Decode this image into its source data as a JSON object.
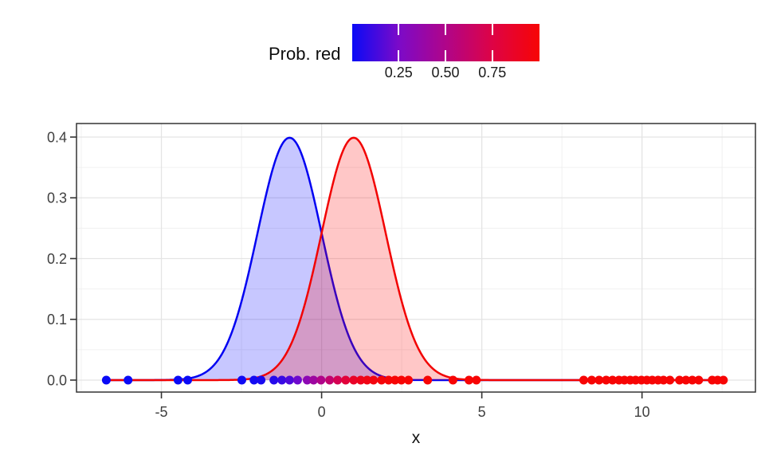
{
  "figure": {
    "background": "#ffffff"
  },
  "legend": {
    "title": "Prob. red",
    "ticks": [
      {
        "value": 0.25,
        "label": "0.25"
      },
      {
        "value": 0.5,
        "label": "0.50"
      },
      {
        "value": 0.75,
        "label": "0.75"
      }
    ],
    "gradient_stops": [
      [
        0.0,
        "#0A0AF6"
      ],
      [
        0.25,
        "#7C0AC8"
      ],
      [
        0.5,
        "#B00589"
      ],
      [
        0.75,
        "#DE0345"
      ],
      [
        1.0,
        "#F70505"
      ]
    ]
  },
  "chart_data": {
    "type": "area",
    "title": "",
    "xlabel": "x",
    "ylabel": "",
    "xlim": [
      -7.65,
      13.54
    ],
    "ylim": [
      -0.0197,
      0.4223
    ],
    "grid": true,
    "legend_position": "top",
    "x_ticks": [
      {
        "value": -5,
        "label": "-5"
      },
      {
        "value": 0,
        "label": "0"
      },
      {
        "value": 5,
        "label": "5"
      },
      {
        "value": 10,
        "label": "10"
      }
    ],
    "x_minor": [
      -7.5,
      -2.5,
      2.5,
      7.5,
      12.5
    ],
    "y_ticks": [
      {
        "value": 0.0,
        "label": "0.0"
      },
      {
        "value": 0.1,
        "label": "0.1"
      },
      {
        "value": 0.2,
        "label": "0.2"
      },
      {
        "value": 0.3,
        "label": "0.3"
      },
      {
        "value": 0.4,
        "label": "0.4"
      }
    ],
    "y_minor": [
      0.05,
      0.15,
      0.25,
      0.35
    ],
    "curves": [
      {
        "name": "blue-density",
        "mean": -1,
        "sd": 1,
        "peak": 0.3989,
        "stroke": "#0202F2",
        "fill_rgb": [
          0,
          0,
          255
        ],
        "fill_alpha": 0.22,
        "domain": [
          -6.72,
          12.54
        ]
      },
      {
        "name": "red-density",
        "mean": 1,
        "sd": 1,
        "peak": 0.3989,
        "stroke": "#F20202",
        "fill_rgb": [
          255,
          0,
          0
        ],
        "fill_alpha": 0.22,
        "domain": [
          -6.72,
          12.54
        ]
      }
    ],
    "points": {
      "y": 0,
      "radius": 5.5,
      "color_by": "prob_red",
      "data": [
        {
          "x": -6.72,
          "p": 0.0
        },
        {
          "x": -6.04,
          "p": 0.0
        },
        {
          "x": -4.48,
          "p": 0.0
        },
        {
          "x": -4.18,
          "p": 0.0
        },
        {
          "x": -2.49,
          "p": 0.01
        },
        {
          "x": -2.11,
          "p": 0.02
        },
        {
          "x": -1.89,
          "p": 0.03
        },
        {
          "x": -1.49,
          "p": 0.06
        },
        {
          "x": -1.24,
          "p": 0.1
        },
        {
          "x": -1.0,
          "p": 0.15
        },
        {
          "x": -0.75,
          "p": 0.22
        },
        {
          "x": -0.45,
          "p": 0.33
        },
        {
          "x": -0.25,
          "p": 0.41
        },
        {
          "x": -0.02,
          "p": 0.5
        },
        {
          "x": 0.25,
          "p": 0.6
        },
        {
          "x": 0.5,
          "p": 0.7
        },
        {
          "x": 0.75,
          "p": 0.79
        },
        {
          "x": 1.0,
          "p": 0.86
        },
        {
          "x": 1.22,
          "p": 0.91
        },
        {
          "x": 1.42,
          "p": 0.94
        },
        {
          "x": 1.62,
          "p": 0.96
        },
        {
          "x": 1.87,
          "p": 0.98
        },
        {
          "x": 2.09,
          "p": 0.99
        },
        {
          "x": 2.29,
          "p": 1.0
        },
        {
          "x": 2.49,
          "p": 1.0
        },
        {
          "x": 2.71,
          "p": 1.0
        },
        {
          "x": 3.31,
          "p": 1.0
        },
        {
          "x": 4.1,
          "p": 1.0
        },
        {
          "x": 4.6,
          "p": 1.0
        },
        {
          "x": 4.83,
          "p": 1.0
        },
        {
          "x": 8.18,
          "p": 1.0
        },
        {
          "x": 8.43,
          "p": 1.0
        },
        {
          "x": 8.66,
          "p": 1.0
        },
        {
          "x": 8.88,
          "p": 1.0
        },
        {
          "x": 9.08,
          "p": 1.0
        },
        {
          "x": 9.28,
          "p": 1.0
        },
        {
          "x": 9.45,
          "p": 1.0
        },
        {
          "x": 9.63,
          "p": 1.0
        },
        {
          "x": 9.8,
          "p": 1.0
        },
        {
          "x": 9.98,
          "p": 1.0
        },
        {
          "x": 10.15,
          "p": 1.0
        },
        {
          "x": 10.32,
          "p": 1.0
        },
        {
          "x": 10.5,
          "p": 1.0
        },
        {
          "x": 10.67,
          "p": 1.0
        },
        {
          "x": 10.87,
          "p": 1.0
        },
        {
          "x": 11.17,
          "p": 1.0
        },
        {
          "x": 11.37,
          "p": 1.0
        },
        {
          "x": 11.57,
          "p": 1.0
        },
        {
          "x": 11.77,
          "p": 1.0
        },
        {
          "x": 12.19,
          "p": 1.0
        },
        {
          "x": 12.36,
          "p": 1.0
        },
        {
          "x": 12.54,
          "p": 1.0
        }
      ]
    },
    "style": {
      "panel_bg": "#ffffff",
      "panel_border": "#333333",
      "grid_major": "#e4e4e4",
      "grid_minor": "#f0f0f0",
      "tick_color": "#333333",
      "axis_text_color": "#404040",
      "axis_title_color": "#111111"
    }
  }
}
